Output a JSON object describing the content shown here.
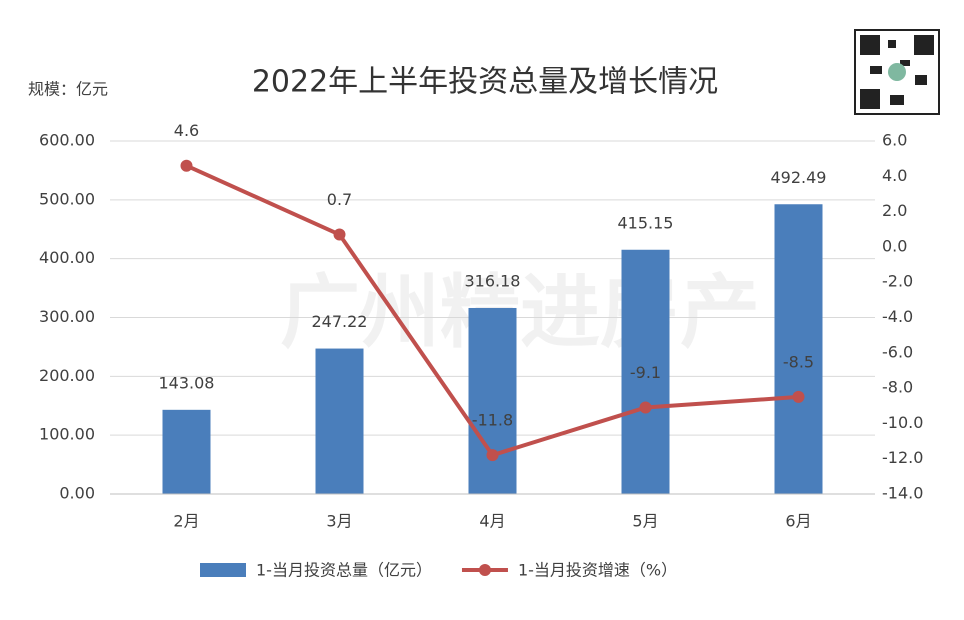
{
  "watermark": "广州精进房产",
  "chart_data": {
    "type": "bar-line",
    "title": "2022年上半年投资总量及增长情况",
    "y_label": "规模：亿元",
    "categories": [
      "2月",
      "3月",
      "4月",
      "5月",
      "6月"
    ],
    "series": [
      {
        "name": "1-当月投资总量（亿元）",
        "type": "bar",
        "color": "#4a7ebb",
        "values": [
          143.08,
          247.22,
          316.18,
          415.15,
          492.49
        ]
      },
      {
        "name": "1-当月投资增速（%）",
        "type": "line",
        "axis": "y2",
        "color": "#c0504d",
        "values": [
          4.6,
          0.7,
          -11.8,
          -9.1,
          -8.5
        ]
      }
    ],
    "ylim": [
      0,
      600
    ],
    "yticks": [
      {
        "value": 0,
        "label": "0.00"
      },
      {
        "value": 100,
        "label": "100.00"
      },
      {
        "value": 200,
        "label": "200.00"
      },
      {
        "value": 300,
        "label": "300.00"
      },
      {
        "value": 400,
        "label": "400.00"
      },
      {
        "value": 500,
        "label": "500.00"
      },
      {
        "value": 600,
        "label": "600.00"
      }
    ],
    "y2lim": [
      -14,
      6
    ],
    "y2ticks": [
      {
        "value": -14,
        "label": "-14.0"
      },
      {
        "value": -12,
        "label": "-12.0"
      },
      {
        "value": -10,
        "label": "-10.0"
      },
      {
        "value": -8,
        "label": "-8.0"
      },
      {
        "value": -6,
        "label": "-6.0"
      },
      {
        "value": -4,
        "label": "-4.0"
      },
      {
        "value": -2,
        "label": "-2.0"
      },
      {
        "value": 0,
        "label": "0.0"
      },
      {
        "value": 2,
        "label": "2.0"
      },
      {
        "value": 4,
        "label": "4.0"
      },
      {
        "value": 6,
        "label": "6.0"
      }
    ],
    "grid": true,
    "legend": "bottom"
  }
}
